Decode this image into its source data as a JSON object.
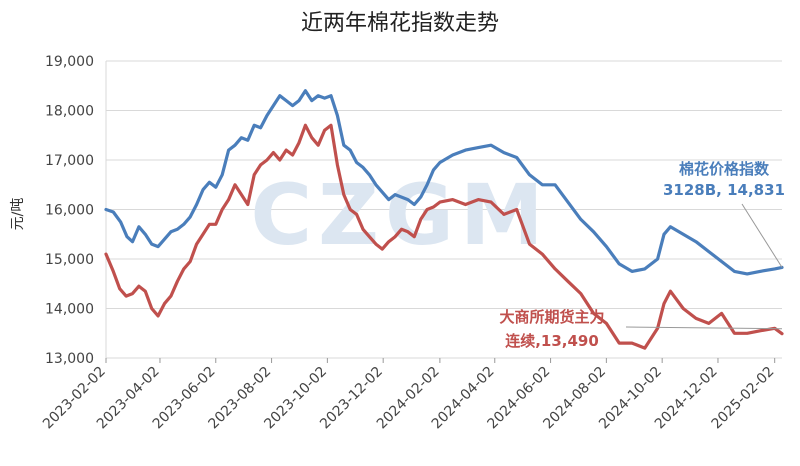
{
  "chart_data": {
    "type": "line",
    "title": "近两年棉花指数走势",
    "ylabel": "元/吨",
    "ylim": [
      13000,
      19000
    ],
    "y_ticks": [
      "13,000",
      "14,000",
      "15,000",
      "16,000",
      "17,000",
      "18,000",
      "19,000"
    ],
    "y_tick_values": [
      13000,
      14000,
      15000,
      16000,
      17000,
      18000,
      19000
    ],
    "x_ticks": [
      "2023-02-02",
      "2023-04-02",
      "2023-06-02",
      "2023-08-02",
      "2023-10-02",
      "2023-12-02",
      "2024-02-02",
      "2024-04-02",
      "2024-06-02",
      "2024-08-02",
      "2024-10-02",
      "2024-12-02",
      "2025-02-02"
    ],
    "xlim": [
      "2023-02-02",
      "2025-02-10"
    ],
    "grid": "horizontal",
    "watermark": "CZGM",
    "colors": {
      "blue": "#4a7ebb",
      "red": "#c0504d",
      "watermark": "#dce6f1",
      "grid": "#d9d9d9"
    },
    "series": [
      {
        "name": "棉花价格指数",
        "color": "#4a7ebb",
        "points": [
          [
            "2023-02-02",
            16000
          ],
          [
            "2023-02-10",
            15950
          ],
          [
            "2023-02-18",
            15750
          ],
          [
            "2023-02-25",
            15450
          ],
          [
            "2023-03-03",
            15350
          ],
          [
            "2023-03-10",
            15650
          ],
          [
            "2023-03-17",
            15500
          ],
          [
            "2023-03-24",
            15300
          ],
          [
            "2023-03-31",
            15250
          ],
          [
            "2023-04-07",
            15400
          ],
          [
            "2023-04-14",
            15550
          ],
          [
            "2023-04-21",
            15600
          ],
          [
            "2023-04-28",
            15700
          ],
          [
            "2023-05-05",
            15850
          ],
          [
            "2023-05-12",
            16100
          ],
          [
            "2023-05-19",
            16400
          ],
          [
            "2023-05-26",
            16550
          ],
          [
            "2023-06-02",
            16450
          ],
          [
            "2023-06-09",
            16700
          ],
          [
            "2023-06-16",
            17200
          ],
          [
            "2023-06-23",
            17300
          ],
          [
            "2023-06-30",
            17450
          ],
          [
            "2023-07-07",
            17400
          ],
          [
            "2023-07-14",
            17700
          ],
          [
            "2023-07-21",
            17650
          ],
          [
            "2023-07-28",
            17900
          ],
          [
            "2023-08-04",
            18100
          ],
          [
            "2023-08-11",
            18300
          ],
          [
            "2023-08-18",
            18200
          ],
          [
            "2023-08-25",
            18100
          ],
          [
            "2023-09-01",
            18200
          ],
          [
            "2023-09-08",
            18400
          ],
          [
            "2023-09-15",
            18200
          ],
          [
            "2023-09-22",
            18300
          ],
          [
            "2023-09-29",
            18250
          ],
          [
            "2023-10-06",
            18300
          ],
          [
            "2023-10-13",
            17900
          ],
          [
            "2023-10-20",
            17300
          ],
          [
            "2023-10-27",
            17200
          ],
          [
            "2023-11-03",
            16950
          ],
          [
            "2023-11-10",
            16850
          ],
          [
            "2023-11-17",
            16700
          ],
          [
            "2023-11-24",
            16500
          ],
          [
            "2023-12-01",
            16350
          ],
          [
            "2023-12-08",
            16200
          ],
          [
            "2023-12-15",
            16300
          ],
          [
            "2023-12-22",
            16250
          ],
          [
            "2023-12-29",
            16200
          ],
          [
            "2024-01-05",
            16100
          ],
          [
            "2024-01-12",
            16250
          ],
          [
            "2024-01-19",
            16500
          ],
          [
            "2024-01-26",
            16800
          ],
          [
            "2024-02-02",
            16950
          ],
          [
            "2024-02-16",
            17100
          ],
          [
            "2024-03-01",
            17200
          ],
          [
            "2024-03-15",
            17250
          ],
          [
            "2024-03-29",
            17300
          ],
          [
            "2024-04-12",
            17150
          ],
          [
            "2024-04-26",
            17050
          ],
          [
            "2024-05-10",
            16700
          ],
          [
            "2024-05-24",
            16500
          ],
          [
            "2024-06-07",
            16500
          ],
          [
            "2024-06-21",
            16150
          ],
          [
            "2024-07-05",
            15800
          ],
          [
            "2024-07-19",
            15550
          ],
          [
            "2024-08-02",
            15250
          ],
          [
            "2024-08-16",
            14900
          ],
          [
            "2024-08-30",
            14750
          ],
          [
            "2024-09-13",
            14800
          ],
          [
            "2024-09-27",
            15000
          ],
          [
            "2024-10-04",
            15500
          ],
          [
            "2024-10-11",
            15650
          ],
          [
            "2024-10-25",
            15500
          ],
          [
            "2024-11-08",
            15350
          ],
          [
            "2024-11-22",
            15150
          ],
          [
            "2024-12-06",
            14950
          ],
          [
            "2024-12-20",
            14750
          ],
          [
            "2025-01-03",
            14700
          ],
          [
            "2025-01-17",
            14750
          ],
          [
            "2025-02-02",
            14800
          ],
          [
            "2025-02-10",
            14831
          ]
        ]
      },
      {
        "name": "大商所期货主力连续",
        "color": "#c0504d",
        "points": [
          [
            "2023-02-02",
            15100
          ],
          [
            "2023-02-10",
            14750
          ],
          [
            "2023-02-17",
            14400
          ],
          [
            "2023-02-24",
            14250
          ],
          [
            "2023-03-03",
            14300
          ],
          [
            "2023-03-10",
            14450
          ],
          [
            "2023-03-17",
            14350
          ],
          [
            "2023-03-24",
            14000
          ],
          [
            "2023-03-31",
            13850
          ],
          [
            "2023-04-07",
            14100
          ],
          [
            "2023-04-14",
            14250
          ],
          [
            "2023-04-21",
            14550
          ],
          [
            "2023-04-28",
            14800
          ],
          [
            "2023-05-05",
            14950
          ],
          [
            "2023-05-12",
            15300
          ],
          [
            "2023-05-19",
            15500
          ],
          [
            "2023-05-26",
            15700
          ],
          [
            "2023-06-02",
            15700
          ],
          [
            "2023-06-09",
            16000
          ],
          [
            "2023-06-16",
            16200
          ],
          [
            "2023-06-23",
            16500
          ],
          [
            "2023-06-30",
            16300
          ],
          [
            "2023-07-07",
            16100
          ],
          [
            "2023-07-14",
            16700
          ],
          [
            "2023-07-21",
            16900
          ],
          [
            "2023-07-28",
            17000
          ],
          [
            "2023-08-04",
            17150
          ],
          [
            "2023-08-11",
            17000
          ],
          [
            "2023-08-18",
            17200
          ],
          [
            "2023-08-25",
            17100
          ],
          [
            "2023-09-01",
            17350
          ],
          [
            "2023-09-08",
            17700
          ],
          [
            "2023-09-15",
            17450
          ],
          [
            "2023-09-22",
            17300
          ],
          [
            "2023-09-29",
            17600
          ],
          [
            "2023-10-06",
            17700
          ],
          [
            "2023-10-13",
            16900
          ],
          [
            "2023-10-20",
            16300
          ],
          [
            "2023-10-27",
            16000
          ],
          [
            "2023-11-03",
            15900
          ],
          [
            "2023-11-10",
            15600
          ],
          [
            "2023-11-17",
            15450
          ],
          [
            "2023-11-24",
            15300
          ],
          [
            "2023-12-01",
            15200
          ],
          [
            "2023-12-08",
            15350
          ],
          [
            "2023-12-15",
            15450
          ],
          [
            "2023-12-22",
            15600
          ],
          [
            "2023-12-29",
            15550
          ],
          [
            "2024-01-05",
            15450
          ],
          [
            "2024-01-12",
            15800
          ],
          [
            "2024-01-19",
            16000
          ],
          [
            "2024-01-26",
            16050
          ],
          [
            "2024-02-02",
            16150
          ],
          [
            "2024-02-16",
            16200
          ],
          [
            "2024-03-01",
            16100
          ],
          [
            "2024-03-15",
            16200
          ],
          [
            "2024-03-29",
            16150
          ],
          [
            "2024-04-12",
            15900
          ],
          [
            "2024-04-26",
            16000
          ],
          [
            "2024-05-10",
            15300
          ],
          [
            "2024-05-24",
            15100
          ],
          [
            "2024-06-07",
            14800
          ],
          [
            "2024-06-21",
            14550
          ],
          [
            "2024-07-05",
            14300
          ],
          [
            "2024-07-19",
            13900
          ],
          [
            "2024-08-02",
            13700
          ],
          [
            "2024-08-16",
            13300
          ],
          [
            "2024-08-30",
            13300
          ],
          [
            "2024-09-13",
            13200
          ],
          [
            "2024-09-27",
            13600
          ],
          [
            "2024-10-04",
            14100
          ],
          [
            "2024-10-11",
            14350
          ],
          [
            "2024-10-25",
            14000
          ],
          [
            "2024-11-08",
            13800
          ],
          [
            "2024-11-22",
            13700
          ],
          [
            "2024-12-06",
            13900
          ],
          [
            "2024-12-20",
            13500
          ],
          [
            "2025-01-03",
            13500
          ],
          [
            "2025-01-17",
            13550
          ],
          [
            "2025-02-02",
            13600
          ],
          [
            "2025-02-10",
            13490
          ]
        ]
      }
    ],
    "annotations": {
      "blue": {
        "line1": "棉花价格指数",
        "line2": "3128B, 14,831"
      },
      "red": {
        "line1": "大商所期货主力",
        "line2": "连续,13,490"
      }
    }
  }
}
